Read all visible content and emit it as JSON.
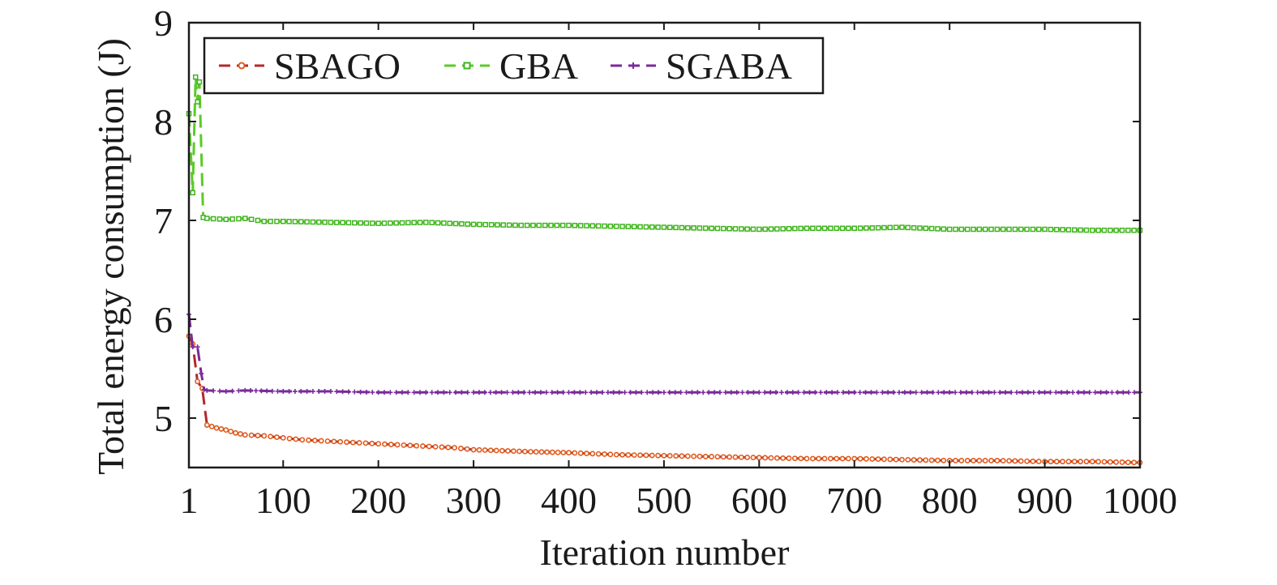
{
  "chart_data": {
    "type": "line",
    "title": "",
    "xlabel": "Iteration number",
    "ylabel": "Total energy consumption (J)",
    "xlim": [
      1,
      1000
    ],
    "ylim": [
      4.5,
      9
    ],
    "xticks": [
      1,
      100,
      200,
      300,
      400,
      500,
      600,
      700,
      800,
      900,
      1000
    ],
    "xtick_labels": [
      "1",
      "100",
      "200",
      "300",
      "400",
      "500",
      "600",
      "700",
      "800",
      "900",
      "1000"
    ],
    "yticks": [
      5,
      6,
      7,
      8,
      9
    ],
    "ytick_labels": [
      "5",
      "6",
      "7",
      "8",
      "9"
    ],
    "grid": false,
    "legend_position": "top-left",
    "series": [
      {
        "name": "SBAGO",
        "color": "#e05a1e",
        "line_color": "#b02a2a",
        "marker": "circle",
        "x": [
          1,
          5,
          10,
          15,
          20,
          30,
          40,
          50,
          60,
          80,
          100,
          120,
          140,
          160,
          180,
          200,
          220,
          240,
          260,
          280,
          300,
          330,
          360,
          400,
          450,
          500,
          550,
          600,
          650,
          700,
          750,
          800,
          850,
          900,
          950,
          1000
        ],
        "y": [
          5.83,
          5.75,
          5.37,
          5.3,
          4.93,
          4.9,
          4.88,
          4.85,
          4.83,
          4.82,
          4.8,
          4.78,
          4.77,
          4.76,
          4.75,
          4.74,
          4.73,
          4.72,
          4.71,
          4.7,
          4.68,
          4.67,
          4.66,
          4.65,
          4.63,
          4.62,
          4.61,
          4.6,
          4.59,
          4.59,
          4.58,
          4.57,
          4.57,
          4.56,
          4.56,
          4.55
        ]
      },
      {
        "name": "GBA",
        "color": "#3fb51c",
        "line_color": "#5acb2a",
        "marker": "square",
        "x": [
          1,
          5,
          8,
          10,
          12,
          16,
          20,
          40,
          60,
          80,
          100,
          150,
          200,
          250,
          300,
          350,
          400,
          450,
          500,
          550,
          600,
          650,
          700,
          750,
          800,
          850,
          900,
          950,
          1000
        ],
        "y": [
          8.08,
          7.28,
          8.45,
          8.2,
          8.4,
          7.03,
          7.02,
          7.01,
          7.02,
          6.99,
          6.99,
          6.98,
          6.97,
          6.98,
          6.96,
          6.95,
          6.95,
          6.94,
          6.93,
          6.92,
          6.91,
          6.92,
          6.92,
          6.93,
          6.91,
          6.91,
          6.91,
          6.9,
          6.9
        ]
      },
      {
        "name": "SGABA",
        "color": "#7a2a9a",
        "line_color": "#7a2a9a",
        "marker": "plus",
        "x": [
          1,
          5,
          10,
          14,
          17,
          20,
          40,
          60,
          100,
          150,
          200,
          250,
          300,
          400,
          500,
          600,
          700,
          800,
          900,
          1000
        ],
        "y": [
          6.05,
          5.72,
          5.72,
          5.45,
          5.29,
          5.28,
          5.27,
          5.28,
          5.27,
          5.27,
          5.26,
          5.26,
          5.26,
          5.26,
          5.26,
          5.26,
          5.26,
          5.26,
          5.26,
          5.26
        ]
      }
    ]
  }
}
